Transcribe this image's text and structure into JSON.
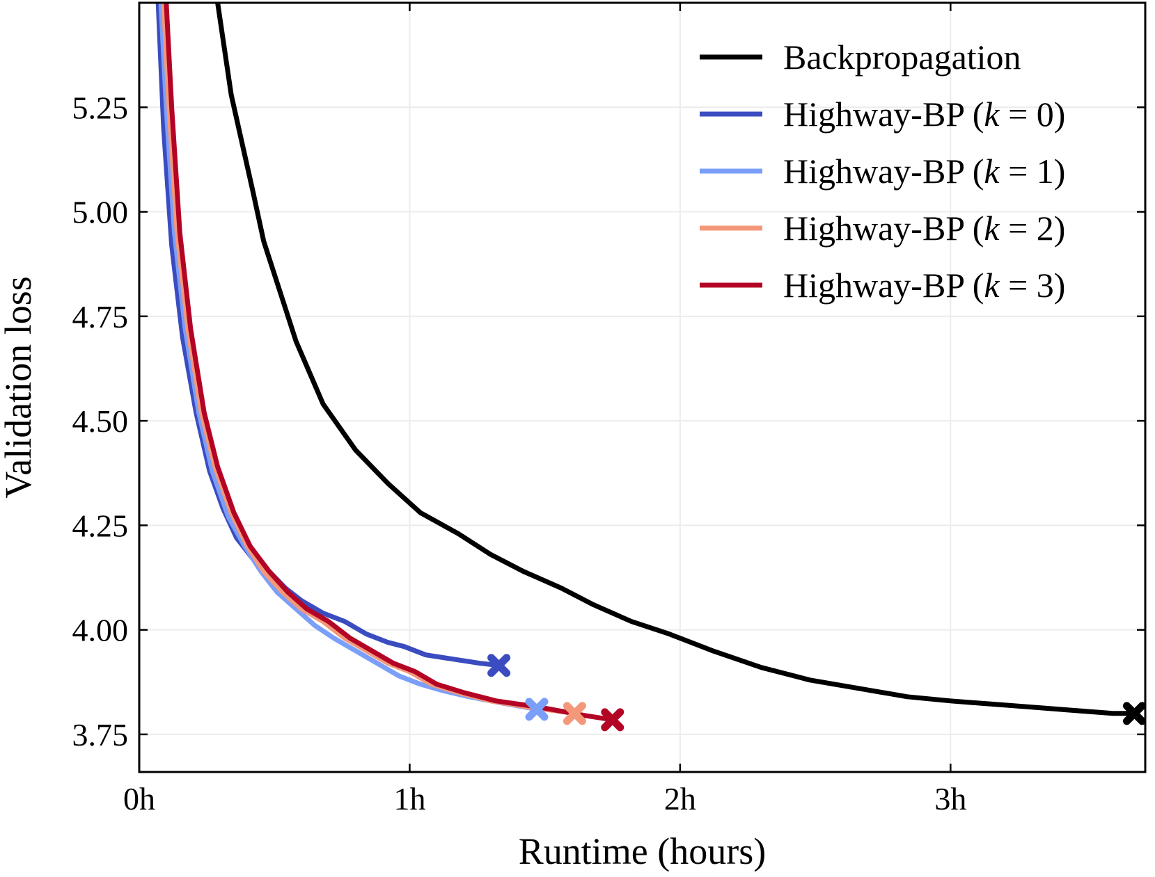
{
  "chart_data": {
    "type": "line",
    "title": "",
    "xlabel": "Runtime (hours)",
    "ylabel": "Validation loss",
    "xlim": [
      0,
      3.72
    ],
    "ylim": [
      3.66,
      5.5
    ],
    "x_ticks": [
      0,
      1,
      2,
      3
    ],
    "x_tick_labels": [
      "0h",
      "1h",
      "2h",
      "3h"
    ],
    "y_ticks": [
      3.75,
      4.0,
      4.25,
      4.5,
      4.75,
      5.0,
      5.25
    ],
    "y_tick_labels": [
      "3.75",
      "4.00",
      "4.25",
      "4.50",
      "4.75",
      "5.00",
      "5.25"
    ],
    "grid": true,
    "legend_position": "top-right",
    "series": [
      {
        "name": "Backpropagation",
        "label_prefix": "Backpropagation",
        "k": "",
        "color": "#000000",
        "marker": "X",
        "x": [
          0.29,
          0.34,
          0.42,
          0.46,
          0.51,
          0.58,
          0.68,
          0.8,
          0.92,
          1.04,
          1.18,
          1.3,
          1.42,
          1.56,
          1.68,
          1.82,
          1.96,
          2.12,
          2.3,
          2.48,
          2.66,
          2.84,
          3.0,
          3.2,
          3.4,
          3.6,
          3.68
        ],
        "y": [
          5.5,
          5.28,
          5.05,
          4.93,
          4.83,
          4.69,
          4.54,
          4.43,
          4.35,
          4.28,
          4.23,
          4.18,
          4.14,
          4.1,
          4.06,
          4.02,
          3.99,
          3.95,
          3.91,
          3.88,
          3.86,
          3.84,
          3.83,
          3.82,
          3.81,
          3.8,
          3.8
        ]
      },
      {
        "name": "Highway-BP (k = 0)",
        "label_prefix": "Highway-BP (",
        "k": "0",
        "color": "#3b4cc0",
        "marker": "X",
        "x": [
          0.07,
          0.09,
          0.12,
          0.16,
          0.21,
          0.26,
          0.31,
          0.36,
          0.42,
          0.48,
          0.54,
          0.6,
          0.68,
          0.76,
          0.84,
          0.92,
          0.98,
          1.06,
          1.16,
          1.26,
          1.33
        ],
        "y": [
          5.5,
          5.2,
          4.92,
          4.7,
          4.52,
          4.38,
          4.29,
          4.22,
          4.17,
          4.14,
          4.1,
          4.07,
          4.04,
          4.02,
          3.99,
          3.97,
          3.96,
          3.94,
          3.93,
          3.92,
          3.915
        ]
      },
      {
        "name": "Highway-BP (k = 1)",
        "label_prefix": "Highway-BP (",
        "k": "1",
        "color": "#7b9ff9",
        "marker": "X",
        "x": [
          0.08,
          0.1,
          0.13,
          0.17,
          0.22,
          0.27,
          0.33,
          0.39,
          0.45,
          0.51,
          0.58,
          0.65,
          0.72,
          0.8,
          0.88,
          0.96,
          1.04,
          1.12,
          1.22,
          1.34,
          1.47
        ],
        "y": [
          5.5,
          5.25,
          4.95,
          4.72,
          4.52,
          4.38,
          4.27,
          4.2,
          4.14,
          4.09,
          4.05,
          4.01,
          3.98,
          3.95,
          3.92,
          3.89,
          3.87,
          3.855,
          3.84,
          3.825,
          3.81
        ]
      },
      {
        "name": "Highway-BP (k = 2)",
        "label_prefix": "Highway-BP (",
        "k": "2",
        "color": "#f4987a",
        "marker": "X",
        "x": [
          0.09,
          0.11,
          0.14,
          0.18,
          0.23,
          0.28,
          0.34,
          0.4,
          0.46,
          0.53,
          0.6,
          0.68,
          0.76,
          0.84,
          0.92,
          1.0,
          1.08,
          1.18,
          1.3,
          1.44,
          1.61
        ],
        "y": [
          5.5,
          5.25,
          4.95,
          4.72,
          4.52,
          4.39,
          4.28,
          4.2,
          4.14,
          4.09,
          4.05,
          4.02,
          3.98,
          3.95,
          3.92,
          3.9,
          3.87,
          3.85,
          3.83,
          3.815,
          3.8
        ]
      },
      {
        "name": "Highway-BP (k = 3)",
        "label_prefix": "Highway-BP (",
        "k": "3",
        "color": "#b40426",
        "marker": "X",
        "x": [
          0.1,
          0.12,
          0.15,
          0.19,
          0.24,
          0.29,
          0.35,
          0.41,
          0.48,
          0.55,
          0.62,
          0.7,
          0.78,
          0.86,
          0.94,
          1.02,
          1.1,
          1.2,
          1.32,
          1.48,
          1.65,
          1.75
        ],
        "y": [
          5.5,
          5.25,
          4.95,
          4.72,
          4.52,
          4.39,
          4.28,
          4.2,
          4.14,
          4.09,
          4.05,
          4.02,
          3.98,
          3.95,
          3.92,
          3.9,
          3.87,
          3.85,
          3.83,
          3.815,
          3.795,
          3.785
        ]
      }
    ]
  }
}
